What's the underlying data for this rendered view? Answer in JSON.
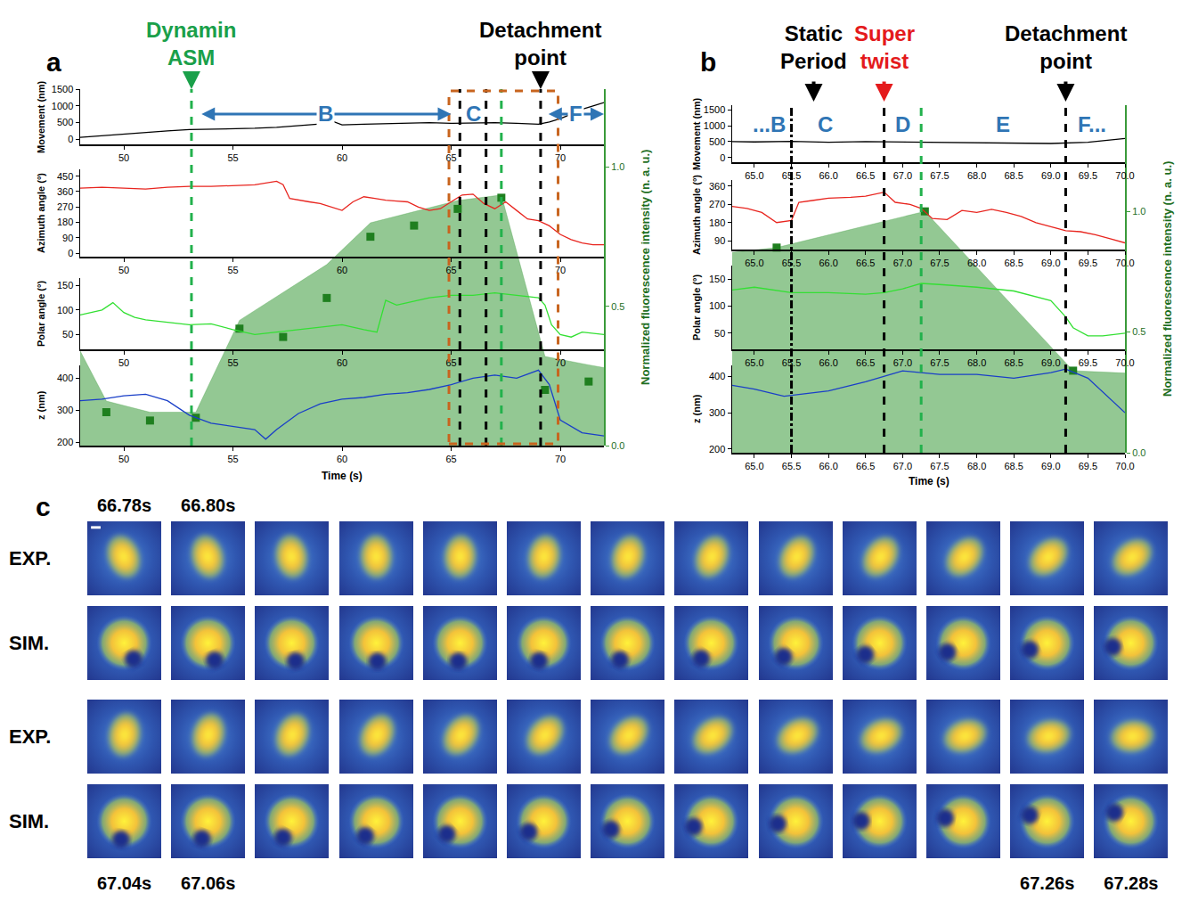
{
  "chart_data": [
    {
      "type": "line",
      "panel": "a",
      "grid": false,
      "x_label": "Time (s)",
      "xlim": [
        48,
        72
      ],
      "xticks": [
        50,
        55,
        60,
        65,
        70
      ],
      "series": [
        {
          "name": "Movement (nm)",
          "color": "#000000",
          "ylim": [
            -150,
            1500
          ],
          "yticks": [
            0,
            500,
            1000,
            1500
          ],
          "x": [
            48,
            49,
            50,
            51,
            52,
            53,
            54,
            55,
            56,
            57,
            58,
            59,
            59.5,
            60,
            61,
            62,
            63,
            64,
            65,
            66,
            67,
            68,
            69,
            69.5,
            70,
            70.5,
            71,
            71.5,
            72
          ],
          "values": [
            60,
            110,
            150,
            200,
            250,
            290,
            300,
            320,
            330,
            360,
            400,
            460,
            560,
            430,
            450,
            470,
            490,
            500,
            480,
            490,
            500,
            480,
            450,
            520,
            620,
            750,
            900,
            1000,
            1100
          ]
        },
        {
          "name": "Azimuth angle (°)",
          "color": "#e8251f",
          "ylim": [
            -20,
            490
          ],
          "yticks": [
            0,
            90,
            180,
            270,
            360,
            450
          ],
          "x": [
            48,
            49,
            50,
            51,
            52,
            53,
            54,
            55,
            56,
            57,
            57.3,
            57.6,
            58,
            58.5,
            59,
            59.5,
            60,
            60.5,
            61,
            61.5,
            62,
            62.5,
            63,
            63.5,
            64,
            64.5,
            65,
            65.5,
            66,
            66.5,
            67,
            67.5,
            68,
            68.5,
            69,
            69.5,
            70,
            70.5,
            71,
            71.5,
            72
          ],
          "values": [
            380,
            385,
            380,
            375,
            385,
            390,
            390,
            395,
            400,
            420,
            400,
            320,
            310,
            300,
            290,
            270,
            250,
            300,
            330,
            320,
            310,
            305,
            300,
            270,
            250,
            260,
            300,
            340,
            345,
            290,
            260,
            300,
            250,
            200,
            190,
            160,
            110,
            80,
            60,
            50,
            50
          ]
        },
        {
          "name": "Polar angle (°)",
          "color": "#33e033",
          "ylim": [
            20,
            165
          ],
          "yticks": [
            50,
            100,
            150
          ],
          "x": [
            48,
            48.5,
            49,
            49.5,
            50,
            50.5,
            51,
            52,
            53,
            54,
            55,
            56,
            57,
            58,
            59,
            60,
            61,
            61.6,
            62,
            62.5,
            63,
            64,
            65,
            66,
            67,
            68,
            69,
            69.3,
            69.6,
            70,
            70.5,
            71,
            72
          ],
          "values": [
            90,
            95,
            100,
            115,
            95,
            85,
            80,
            75,
            70,
            72,
            60,
            50,
            55,
            60,
            65,
            70,
            60,
            55,
            120,
            110,
            115,
            125,
            130,
            130,
            135,
            130,
            125,
            110,
            70,
            50,
            45,
            55,
            50
          ]
        },
        {
          "name": "z (nm)",
          "color": "#1a3fc8",
          "ylim": [
            190,
            440
          ],
          "yticks": [
            200,
            300,
            400
          ],
          "x": [
            48,
            49,
            50,
            51,
            52,
            53,
            54,
            55,
            56,
            56.5,
            57,
            58,
            59,
            60,
            61,
            62,
            63,
            64,
            65,
            66,
            67,
            68,
            69,
            69.5,
            70,
            71,
            72
          ],
          "values": [
            330,
            335,
            345,
            350,
            330,
            285,
            260,
            250,
            240,
            210,
            240,
            290,
            320,
            335,
            340,
            350,
            355,
            365,
            380,
            400,
            410,
            400,
            425,
            380,
            270,
            230,
            220
          ]
        }
      ],
      "y2_label": "Normalized fluorescence intensity (n. a. u.)",
      "y2lim": [
        0,
        1.28
      ],
      "y2ticks": [
        {
          "value": 0,
          "label": "0.0"
        },
        {
          "value": 0.5,
          "label": "0.5"
        },
        {
          "value": 1,
          "label": "1.0"
        }
      ],
      "fluorescence": {
        "color": "#3a9a3a",
        "marker": "square",
        "fill_x": [
          48,
          49.2,
          51.2,
          53.3,
          55.3,
          57.3,
          59.3,
          61.3,
          63.3,
          65.3,
          67.3,
          69.3,
          71.3,
          72
        ],
        "fill_values": [
          0.34,
          0.16,
          0.12,
          0.12,
          0.45,
          0.55,
          0.65,
          0.8,
          0.84,
          0.88,
          0.9,
          0.32,
          0.29,
          0.28
        ],
        "x": [
          49.2,
          51.2,
          53.3,
          55.3,
          57.3,
          59.3,
          61.3,
          63.3,
          65.3,
          67.3,
          69.3,
          71.3
        ],
        "values": [
          0.12,
          0.09,
          0.1,
          0.42,
          0.39,
          0.53,
          0.75,
          0.79,
          0.85,
          0.89,
          0.2,
          0.23
        ]
      },
      "headers": [
        {
          "text": "Dynamin ASM",
          "x": 53.1,
          "color": "#1aa04a"
        },
        {
          "text": "Detachment point",
          "x": 69.1,
          "color": "#000000"
        }
      ],
      "lines": [
        {
          "x": 53.1,
          "color": "#22b14c",
          "line_style": "dash"
        },
        {
          "x": 65.4,
          "color": "#000000",
          "line_style": "dash"
        },
        {
          "x": 66.6,
          "color": "#000000",
          "line_style": "dash"
        },
        {
          "x": 67.3,
          "color": "#22b14c",
          "line_style": "dash"
        },
        {
          "x": 69.1,
          "color": "#000000",
          "line_style": "dash"
        }
      ],
      "phases": [
        {
          "label": "B",
          "from": 53.5,
          "to": 65.0,
          "color": "#2f75b5"
        },
        {
          "label": "C",
          "at": 66.0,
          "color": "#2f75b5"
        },
        {
          "label": "F",
          "from": 69.4,
          "to": 72.0,
          "color": "#2f75b5"
        }
      ],
      "zoom_box": {
        "from": 64.9,
        "to": 69.9,
        "color": "#c8641e",
        "line_style": "dash"
      }
    },
    {
      "type": "line",
      "panel": "b",
      "grid": false,
      "x_label": "Time (s)",
      "xlim": [
        64.7,
        70
      ],
      "xticks": [
        {
          "value": 65,
          "label": "65.0"
        },
        65.5,
        {
          "value": 66,
          "label": "66.0"
        },
        66.5,
        {
          "value": 67,
          "label": "67.0"
        },
        67.5,
        {
          "value": 68,
          "label": "68.0"
        },
        68.5,
        {
          "value": 69,
          "label": "69.0"
        },
        69.5,
        {
          "value": 70,
          "label": "70.0"
        }
      ],
      "series": [
        {
          "name": "Movement (nm)",
          "color": "#000000",
          "ylim": [
            -150,
            1650
          ],
          "yticks": [
            0,
            500,
            1000,
            1500
          ],
          "x": [
            64.7,
            65,
            65.5,
            66,
            66.5,
            67,
            67.5,
            68,
            68.5,
            69,
            69.5,
            70
          ],
          "values": [
            500,
            490,
            510,
            480,
            500,
            490,
            480,
            470,
            460,
            440,
            480,
            600
          ]
        },
        {
          "name": "Azimuth angle (°)",
          "color": "#e8251f",
          "ylim": [
            47,
            390
          ],
          "yticks": [
            90,
            180,
            270,
            360
          ],
          "x": [
            64.7,
            64.9,
            65.1,
            65.3,
            65.5,
            65.6,
            65.8,
            66,
            66.3,
            66.5,
            66.75,
            66.9,
            67.1,
            67.25,
            67.4,
            67.6,
            67.8,
            68,
            68.2,
            68.4,
            68.6,
            68.8,
            69,
            69.2,
            69.4,
            69.6,
            69.8,
            70
          ],
          "values": [
            260,
            250,
            230,
            180,
            190,
            280,
            290,
            300,
            305,
            310,
            330,
            280,
            270,
            250,
            200,
            195,
            240,
            230,
            245,
            230,
            210,
            180,
            160,
            140,
            135,
            120,
            100,
            80
          ]
        },
        {
          "name": "Polar angle (°)",
          "color": "#33e033",
          "ylim": [
            20,
            175
          ],
          "yticks": [
            50,
            100,
            150
          ],
          "x": [
            64.7,
            65,
            65.5,
            66,
            66.5,
            66.75,
            67,
            67.25,
            67.5,
            68,
            68.5,
            69,
            69.2,
            69.3,
            69.5,
            69.7,
            70
          ],
          "values": [
            130,
            135,
            125,
            125,
            122,
            125,
            132,
            142,
            140,
            135,
            128,
            110,
            80,
            60,
            45,
            45,
            50
          ]
        },
        {
          "name": "z (nm)",
          "color": "#1a3fc8",
          "ylim": [
            190,
            430
          ],
          "yticks": [
            200,
            300,
            400
          ],
          "x": [
            64.7,
            65,
            65.4,
            66,
            66.5,
            67,
            67.5,
            68,
            68.5,
            69,
            69.2,
            69.5,
            70
          ],
          "values": [
            375,
            365,
            345,
            360,
            385,
            415,
            405,
            405,
            395,
            410,
            420,
            395,
            300
          ]
        }
      ],
      "y2_label": "Normalized fluorescence intensity (n. a. u.)",
      "y2lim": [
        0,
        1.44
      ],
      "y2ticks": [
        {
          "value": 0,
          "label": "0.0"
        },
        {
          "value": 0.5,
          "label": "0.5"
        },
        {
          "value": 1,
          "label": "1.0"
        }
      ],
      "fluorescence": {
        "color": "#3a9a3a",
        "marker": "square",
        "fill_x": [
          64.7,
          65.3,
          67.3,
          69.3,
          70
        ],
        "fill_values": [
          0.83,
          0.85,
          1.0,
          0.34,
          0.33
        ],
        "x": [
          65.3,
          67.3,
          69.3
        ],
        "values": [
          0.85,
          1.0,
          0.34
        ]
      },
      "headers": [
        {
          "text": "Static Period",
          "x": 65.8,
          "color": "#000000"
        },
        {
          "text": "Super twist",
          "x": 66.75,
          "color": "#e41a1c"
        },
        {
          "text": "Detachment point",
          "x": 69.2,
          "color": "#000000"
        }
      ],
      "lines": [
        {
          "x": 65.5,
          "color": "#000000",
          "line_style": "dashdot"
        },
        {
          "x": 66.75,
          "color": "#000000",
          "line_style": "dash"
        },
        {
          "x": 67.25,
          "color": "#22b14c",
          "line_style": "dash"
        },
        {
          "x": 69.2,
          "color": "#000000",
          "line_style": "dash"
        }
      ],
      "phases": [
        {
          "label": "...B",
          "at": 65.2,
          "color": "#2f75b5"
        },
        {
          "label": "C",
          "at": 65.95,
          "color": "#2f75b5"
        },
        {
          "label": "D",
          "at": 67.0,
          "color": "#2f75b5"
        },
        {
          "label": "E",
          "at": 68.35,
          "color": "#2f75b5"
        },
        {
          "label": "F...",
          "at": 69.55,
          "color": "#2f75b5"
        }
      ]
    }
  ],
  "image_grid": {
    "panel": "c",
    "columns": 13,
    "row_labels": [
      "EXP.",
      "SIM.",
      "EXP.",
      "SIM."
    ],
    "top_time_labels": [
      "66.78s",
      "66.80s"
    ],
    "bottom_time_labels_left": [
      "67.04s",
      "67.06s"
    ],
    "bottom_time_labels_right": [
      "67.26s",
      "67.28s"
    ]
  }
}
